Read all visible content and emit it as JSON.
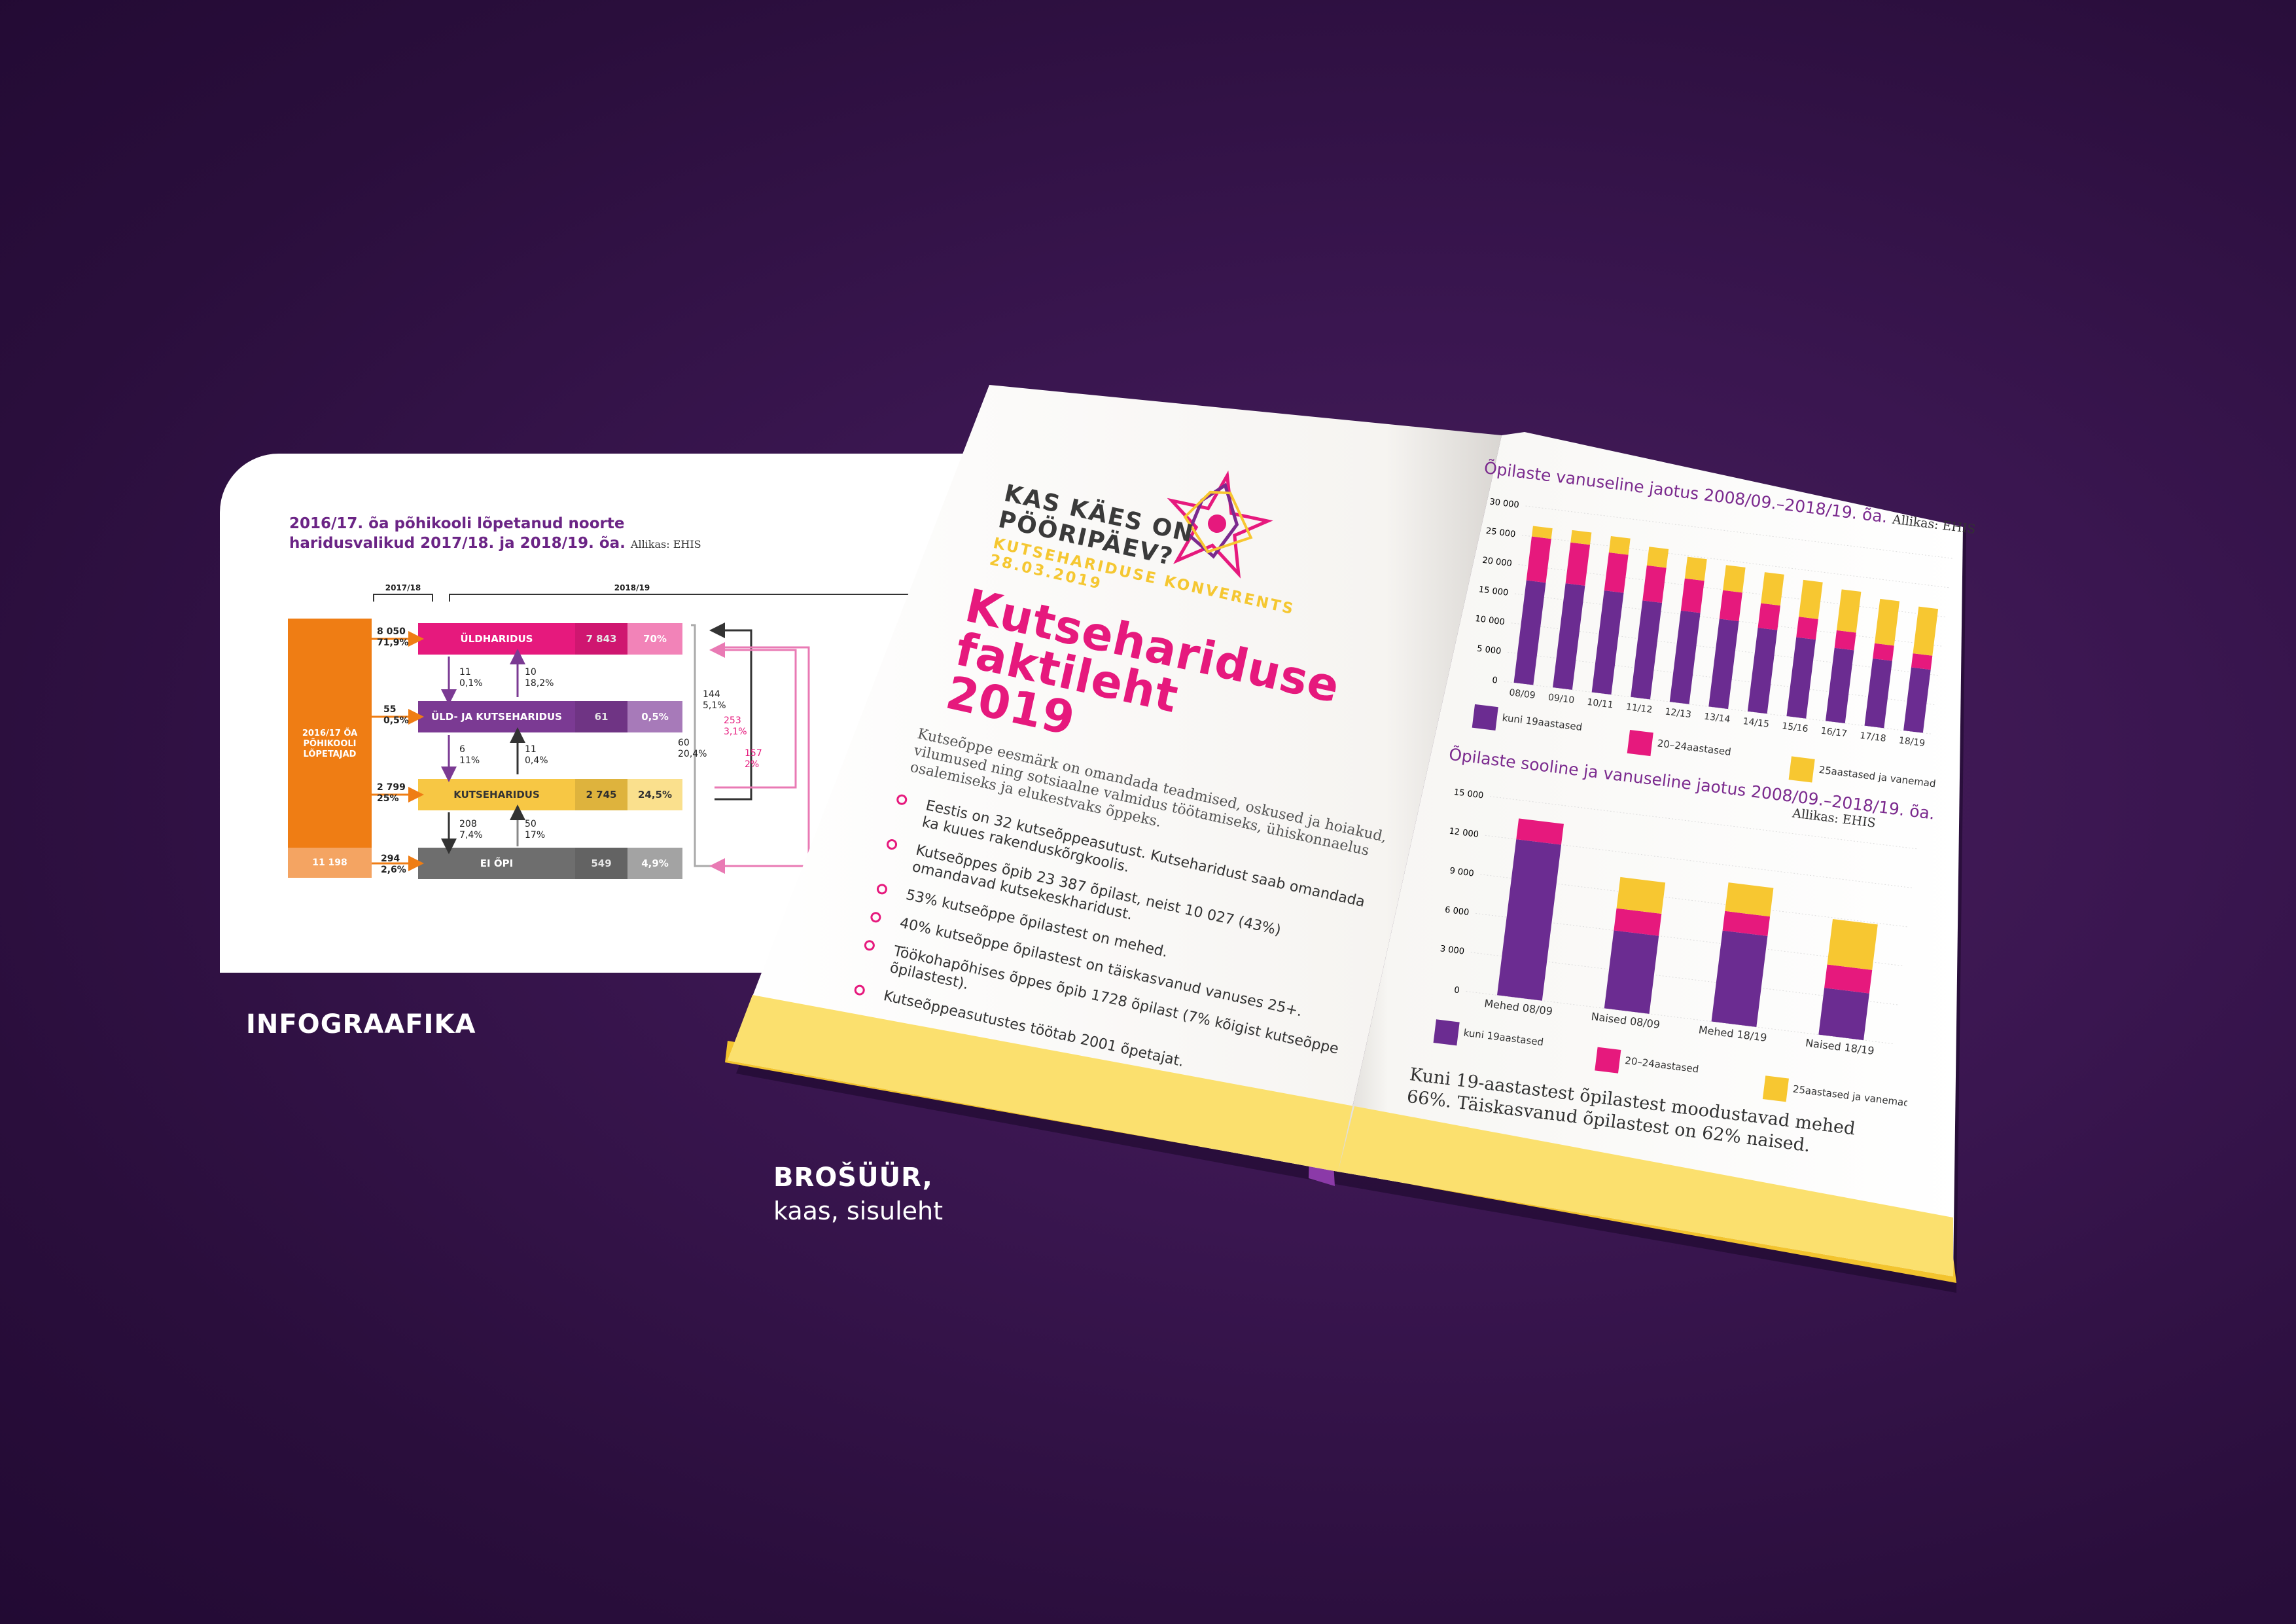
{
  "infographic": {
    "title_line1": "2016/17. õa põhikooli lõpetanud noorte",
    "title_line2": "haridusvalikud 2017/18. ja 2018/19. õa.",
    "source": "Allikas: EHIS",
    "year_left": "2017/18",
    "year_right": "2018/19",
    "total_label": "2016/17 ÕA PÕHIKOOLI LÕPETAJAD",
    "total_value": "11 198",
    "rows": [
      {
        "name": "ÜLDHARIDUS",
        "in_value": "8 050",
        "in_pct": "71,9%",
        "value": "7 843",
        "pct": "70%",
        "color": "#e6197d",
        "light": "#f283b8"
      },
      {
        "name": "ÜLD- JA KUTSEHARIDUS",
        "in_value": "55",
        "in_pct": "0,5%",
        "value": "61",
        "pct": "0,5%",
        "color": "#7b3a93",
        "light": "#a77ab9"
      },
      {
        "name": "KUTSEHARIDUS",
        "in_value": "2 799",
        "in_pct": "25%",
        "value": "2 745",
        "pct": "24,5%",
        "color": "#f7c744",
        "light": "#fae08d"
      },
      {
        "name": "EI ÕPI",
        "in_value": "294",
        "in_pct": "2,6%",
        "value": "549",
        "pct": "4,9%",
        "color": "#6e6e6e",
        "light": "#a3a3a3"
      }
    ],
    "flows": [
      {
        "a": "11",
        "b": "0,1%"
      },
      {
        "a": "10",
        "b": "18,2%"
      },
      {
        "a": "6",
        "b": "11%"
      },
      {
        "a": "11",
        "b": "0,4%"
      },
      {
        "a": "208",
        "b": "7,4%"
      },
      {
        "a": "50",
        "b": "17%"
      },
      {
        "a": "144",
        "b": "5,1%"
      },
      {
        "a": "60",
        "b": "20,4%"
      },
      {
        "a": "253",
        "b": "3,1%"
      },
      {
        "a": "157",
        "b": "2%"
      }
    ],
    "caption": "INFOGRAAFIKA"
  },
  "brochure": {
    "caption_bold": "BROŠÜÜR,",
    "caption_sub": "kaas, sisuleht",
    "cover": {
      "question": "KAS KÄES ON PÖÖRIPÄEV?",
      "conference": "KUTSEHARIDUSE KONVERENTS 28.03.2019",
      "heading_line1": "Kutsehariduse",
      "heading_line2": "faktileht 2019",
      "intro": "Kutseõppe eesmärk on omandada teadmised, oskused ja hoiakud, vilumused ning sotsiaalne valmidus töötamiseks, ühiskonnaelus osalemiseks ja elukestvaks õppeks.",
      "bullets": [
        "Eestis on 32 kutseõppeasutust. Kutseharidust saab omandada ka kuues rakenduskõrgkoolis.",
        "Kutseõppes õpib 23 387 õpilast, neist 10 027 (43%) omandavad kutsekeskharidust.",
        "53% kutseõppe õpilastest on mehed.",
        "40% kutseõppe õpilastest on täiskasvanud vanuses 25+.",
        "Töökohapõhises õppes õpib 1728 õpilast (7% kõigist kutseõppe õpilastest).",
        "Kutseõppeasutustes töötab 2001 õpetajat."
      ]
    },
    "inner": {
      "chart1_title": "Õpilaste vanuseline jaotus 2008/09.–2018/19. õa.",
      "chart1_source": "Allikas: EHIS",
      "chart2_title": "Õpilaste sooline ja vanuseline jaotus 2008/09.–2018/19. õa.",
      "chart2_source": "Allikas: EHIS",
      "legend": [
        "kuni 19aastased",
        "20–24aastased",
        "25aastased ja vanemad"
      ],
      "footer_text": "Kuni 19-aastastest õpilastest moodustavad mehed 66%. Täiskasvanud õpilastest on 62% naised."
    },
    "colors": {
      "purple": "#6b2c91",
      "pink": "#e6197d",
      "yellow": "#f7c731"
    }
  },
  "chart_data": [
    {
      "type": "bar",
      "title": "Õpilaste vanuseline jaotus 2008/09.–2018/19. õa.",
      "categories": [
        "08/09",
        "09/10",
        "10/11",
        "11/12",
        "12/13",
        "13/14",
        "14/15",
        "15/16",
        "16/17",
        "17/18",
        "18/19"
      ],
      "yticks": [
        "30 000",
        "25 000",
        "20 000",
        "15 000",
        "10 000",
        "5 000",
        "0"
      ],
      "ylim": [
        0,
        30000
      ],
      "series": [
        {
          "name": "kuni 19aastased",
          "values": [
            17500,
            17800,
            17400,
            16500,
            15600,
            15000,
            14300,
            13500,
            12500,
            11500,
            10800
          ]
        },
        {
          "name": "20–24aastased",
          "values": [
            7500,
            7000,
            6500,
            6000,
            5500,
            4900,
            4200,
            3500,
            3000,
            2600,
            2400
          ]
        },
        {
          "name": "25aastased ja vanemad",
          "values": [
            1800,
            2100,
            2800,
            3200,
            3700,
            4300,
            5300,
            6300,
            7000,
            7600,
            8000
          ]
        }
      ]
    },
    {
      "type": "bar",
      "title": "Õpilaste sooline ja vanuseline jaotus 2008/09.–2018/19. õa.",
      "categories": [
        "Mehed 08/09",
        "Naised 08/09",
        "Mehed 18/19",
        "Naised 18/19"
      ],
      "yticks": [
        "15 000",
        "12 000",
        "9 000",
        "6 000",
        "3 000",
        "0"
      ],
      "ylim": [
        0,
        15000
      ],
      "series": [
        {
          "name": "kuni 19aastased",
          "values": [
            12000,
            6000,
            7000,
            3600
          ]
        },
        {
          "name": "20–24aastased",
          "values": [
            1600,
            1700,
            1500,
            1800
          ]
        },
        {
          "name": "25aastased ja vanemad",
          "values": [
            0,
            2400,
            2200,
            3500
          ]
        }
      ]
    }
  ]
}
